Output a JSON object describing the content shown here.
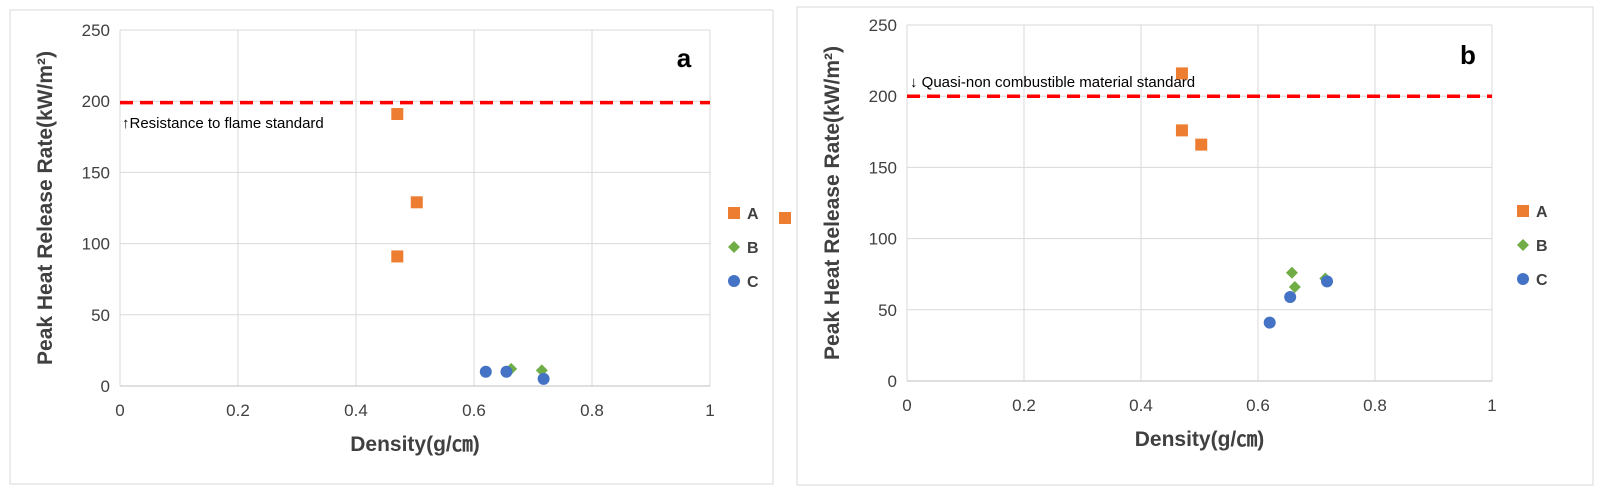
{
  "colors": {
    "A": "#ED7D31",
    "B": "#70AD47",
    "C": "#4472C4",
    "standard_line": "#FF0000",
    "grid": "#D9D9D9",
    "panel_border": "#D9D9D9"
  },
  "chart_data": [
    {
      "type": "scatter",
      "panel_label": "a",
      "xlabel": "Density(g/㎝)",
      "ylabel": "Peak Heat Release Rate(kW/m²)",
      "xlim": [
        0,
        1
      ],
      "ylim": [
        0,
        250
      ],
      "xticks": [
        0,
        0.2,
        0.4,
        0.6,
        0.8,
        1
      ],
      "xtick_labels": [
        "0",
        "0.2",
        "0.4",
        "0.6",
        "0.8",
        "1"
      ],
      "yticks": [
        0,
        50,
        100,
        150,
        200,
        250
      ],
      "ytick_labels": [
        "0",
        "50",
        "100",
        "150",
        "200",
        "250"
      ],
      "grid": true,
      "legend_position": "right",
      "reference_line": {
        "y": 199,
        "style": "dashed",
        "label": "↑Resistance to flame standard"
      },
      "series": [
        {
          "name": "A",
          "marker": "square",
          "x": [
            0.47,
            0.47,
            0.503
          ],
          "y": [
            191,
            91,
            129
          ]
        },
        {
          "name": "B",
          "marker": "diamond",
          "x": [
            0.663,
            0.715
          ],
          "y": [
            12,
            11
          ]
        },
        {
          "name": "C",
          "marker": "circle",
          "x": [
            0.62,
            0.655,
            0.718
          ],
          "y": [
            10,
            10,
            5
          ]
        }
      ]
    },
    {
      "type": "scatter",
      "panel_label": "b",
      "xlabel": "Density(g/㎝)",
      "ylabel": "Peak Heat Release Rate(kW/m²)",
      "xlim": [
        0,
        1
      ],
      "ylim": [
        0,
        250
      ],
      "xticks": [
        0,
        0.2,
        0.4,
        0.6,
        0.8,
        1
      ],
      "xtick_labels": [
        "0",
        "0.2",
        "0.4",
        "0.6",
        "0.8",
        "1"
      ],
      "yticks": [
        0,
        50,
        100,
        150,
        200,
        250
      ],
      "ytick_labels": [
        "0",
        "50",
        "100",
        "150",
        "200",
        "250"
      ],
      "grid": true,
      "legend_position": "right",
      "reference_line": {
        "y": 200,
        "style": "dashed",
        "label": "↓ Quasi-non combustible material standard"
      },
      "series": [
        {
          "name": "A",
          "marker": "square",
          "x": [
            0.47,
            0.47,
            0.503
          ],
          "y": [
            216,
            176,
            166
          ]
        },
        {
          "name": "B",
          "marker": "diamond",
          "x": [
            0.658,
            0.663,
            0.715
          ],
          "y": [
            76,
            66,
            72
          ]
        },
        {
          "name": "C",
          "marker": "circle",
          "x": [
            0.62,
            0.655,
            0.718
          ],
          "y": [
            41,
            59,
            70
          ]
        }
      ]
    }
  ]
}
